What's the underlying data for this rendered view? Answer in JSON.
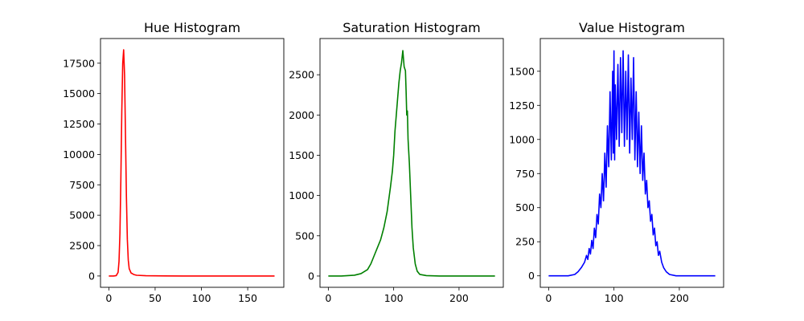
{
  "chart_data": [
    {
      "type": "line",
      "title": "Hue Histogram",
      "xlabel": "",
      "ylabel": "",
      "color": "#ff0000",
      "xlim": [
        -9,
        189
      ],
      "ylim": [
        -930,
        19530
      ],
      "xticks": [
        0,
        50,
        100,
        150
      ],
      "yticks": [
        0,
        2500,
        5000,
        7500,
        10000,
        12500,
        15000,
        17500
      ],
      "points": [
        [
          0,
          0
        ],
        [
          5,
          0
        ],
        [
          8,
          30
        ],
        [
          10,
          300
        ],
        [
          11,
          1200
        ],
        [
          12,
          3500
        ],
        [
          13,
          8000
        ],
        [
          14,
          13500
        ],
        [
          15,
          17500
        ],
        [
          16,
          18600
        ],
        [
          17,
          16500
        ],
        [
          18,
          11500
        ],
        [
          19,
          6500
        ],
        [
          20,
          3000
        ],
        [
          21,
          1300
        ],
        [
          22,
          600
        ],
        [
          24,
          250
        ],
        [
          27,
          120
        ],
        [
          30,
          60
        ],
        [
          40,
          20
        ],
        [
          60,
          5
        ],
        [
          80,
          0
        ],
        [
          120,
          0
        ],
        [
          179,
          0
        ]
      ],
      "grid": false,
      "legend": "none"
    },
    {
      "type": "line",
      "title": "Saturation Histogram",
      "xlabel": "",
      "ylabel": "",
      "color": "#008000",
      "xlim": [
        -12.75,
        267.75
      ],
      "ylim": [
        -140,
        2950
      ],
      "xticks": [
        0,
        100,
        200
      ],
      "yticks": [
        0,
        500,
        1000,
        1500,
        2000,
        2500
      ],
      "points": [
        [
          0,
          0
        ],
        [
          20,
          0
        ],
        [
          30,
          5
        ],
        [
          40,
          10
        ],
        [
          50,
          30
        ],
        [
          60,
          80
        ],
        [
          65,
          150
        ],
        [
          70,
          250
        ],
        [
          75,
          350
        ],
        [
          80,
          450
        ],
        [
          85,
          600
        ],
        [
          90,
          800
        ],
        [
          95,
          1100
        ],
        [
          98,
          1300
        ],
        [
          100,
          1500
        ],
        [
          102,
          1800
        ],
        [
          104,
          2000
        ],
        [
          106,
          2200
        ],
        [
          108,
          2400
        ],
        [
          110,
          2550
        ],
        [
          112,
          2650
        ],
        [
          114,
          2800
        ],
        [
          116,
          2600
        ],
        [
          118,
          2550
        ],
        [
          119,
          2300
        ],
        [
          120,
          2000
        ],
        [
          121,
          2050
        ],
        [
          122,
          1700
        ],
        [
          124,
          1400
        ],
        [
          126,
          1000
        ],
        [
          128,
          600
        ],
        [
          130,
          350
        ],
        [
          133,
          150
        ],
        [
          136,
          60
        ],
        [
          140,
          20
        ],
        [
          150,
          5
        ],
        [
          170,
          0
        ],
        [
          255,
          0
        ]
      ],
      "grid": false,
      "legend": "none"
    },
    {
      "type": "line",
      "title": "Value Histogram",
      "xlabel": "",
      "ylabel": "",
      "color": "#0000ff",
      "xlim": [
        -12.75,
        267.75
      ],
      "ylim": [
        -84,
        1740
      ],
      "xticks": [
        0,
        100,
        200
      ],
      "yticks": [
        0,
        250,
        500,
        750,
        1000,
        1250,
        1500
      ],
      "points": [
        [
          0,
          0
        ],
        [
          30,
          0
        ],
        [
          40,
          10
        ],
        [
          45,
          30
        ],
        [
          50,
          60
        ],
        [
          55,
          100
        ],
        [
          58,
          150
        ],
        [
          60,
          120
        ],
        [
          62,
          200
        ],
        [
          64,
          160
        ],
        [
          66,
          260
        ],
        [
          68,
          200
        ],
        [
          70,
          350
        ],
        [
          72,
          280
        ],
        [
          74,
          450
        ],
        [
          76,
          380
        ],
        [
          78,
          600
        ],
        [
          80,
          500
        ],
        [
          82,
          750
        ],
        [
          84,
          550
        ],
        [
          86,
          900
        ],
        [
          88,
          650
        ],
        [
          90,
          1100
        ],
        [
          92,
          800
        ],
        [
          94,
          1350
        ],
        [
          96,
          850
        ],
        [
          98,
          1500
        ],
        [
          99,
          900
        ],
        [
          100,
          1650
        ],
        [
          101,
          850
        ],
        [
          102,
          1400
        ],
        [
          104,
          1000
        ],
        [
          106,
          1550
        ],
        [
          108,
          950
        ],
        [
          110,
          1600
        ],
        [
          112,
          1050
        ],
        [
          114,
          1650
        ],
        [
          116,
          950
        ],
        [
          118,
          1500
        ],
        [
          120,
          1000
        ],
        [
          122,
          1620
        ],
        [
          124,
          900
        ],
        [
          126,
          1450
        ],
        [
          128,
          1000
        ],
        [
          130,
          1600
        ],
        [
          132,
          850
        ],
        [
          134,
          1350
        ],
        [
          136,
          800
        ],
        [
          138,
          1200
        ],
        [
          140,
          750
        ],
        [
          142,
          1100
        ],
        [
          144,
          700
        ],
        [
          146,
          900
        ],
        [
          148,
          600
        ],
        [
          150,
          700
        ],
        [
          152,
          500
        ],
        [
          154,
          550
        ],
        [
          156,
          400
        ],
        [
          158,
          450
        ],
        [
          160,
          300
        ],
        [
          162,
          350
        ],
        [
          164,
          220
        ],
        [
          166,
          250
        ],
        [
          168,
          150
        ],
        [
          170,
          180
        ],
        [
          173,
          100
        ],
        [
          176,
          60
        ],
        [
          180,
          30
        ],
        [
          185,
          10
        ],
        [
          195,
          0
        ],
        [
          255,
          0
        ]
      ],
      "grid": false,
      "legend": "none"
    }
  ]
}
